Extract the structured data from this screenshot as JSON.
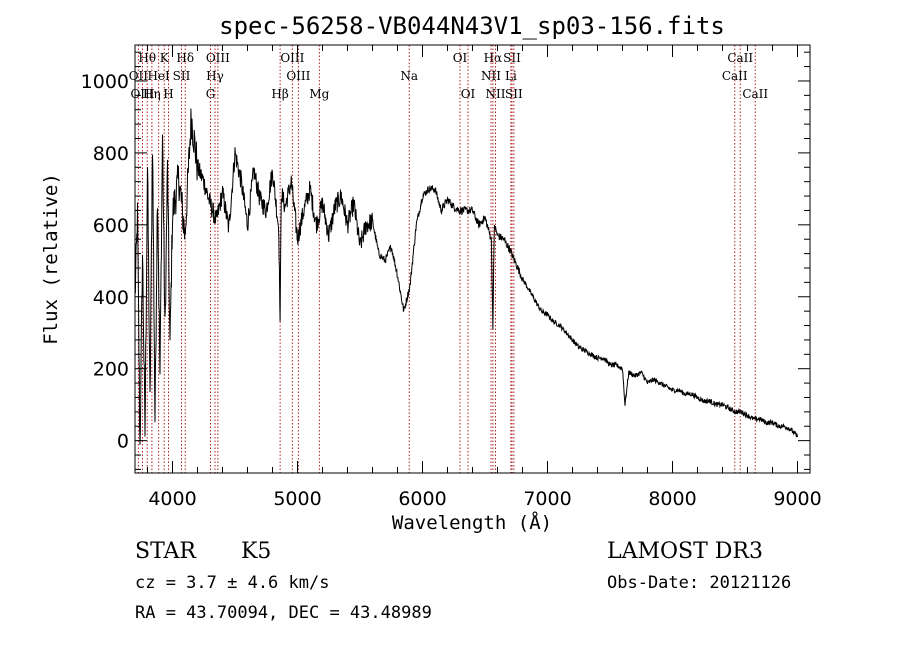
{
  "chart_data": {
    "type": "line",
    "title": "spec-56258-VB044N43V1_sp03-156.fits",
    "xlabel": "Wavelength (Å)",
    "ylabel": "Flux (relative)",
    "xlim": [
      3700,
      9100
    ],
    "ylim": [
      -90,
      1100
    ],
    "xticks": [
      4000,
      5000,
      6000,
      7000,
      8000,
      9000
    ],
    "xtick_labels": [
      "4000",
      "5000",
      "6000",
      "7000",
      "8000",
      "9000"
    ],
    "yticks": [
      0,
      200,
      400,
      600,
      800,
      1000
    ],
    "ytick_labels": [
      "0",
      "200",
      "400",
      "600",
      "800",
      "1000"
    ],
    "grid": false,
    "series": [
      {
        "name": "flux",
        "x": [
          3700,
          3720,
          3740,
          3760,
          3780,
          3800,
          3820,
          3840,
          3860,
          3880,
          3900,
          3920,
          3940,
          3960,
          3980,
          4000,
          4050,
          4100,
          4150,
          4200,
          4250,
          4300,
          4350,
          4400,
          4450,
          4500,
          4550,
          4600,
          4650,
          4700,
          4750,
          4800,
          4850,
          4861,
          4870,
          4900,
          4950,
          5000,
          5050,
          5100,
          5150,
          5200,
          5250,
          5300,
          5350,
          5400,
          5450,
          5500,
          5550,
          5600,
          5650,
          5700,
          5750,
          5800,
          5850,
          5900,
          5950,
          6000,
          6050,
          6100,
          6150,
          6200,
          6250,
          6300,
          6350,
          6400,
          6450,
          6500,
          6550,
          6563,
          6575,
          6600,
          6650,
          6700,
          6750,
          6800,
          6850,
          6900,
          6950,
          7000,
          7050,
          7100,
          7150,
          7200,
          7250,
          7300,
          7350,
          7400,
          7450,
          7500,
          7550,
          7600,
          7620,
          7650,
          7700,
          7750,
          7800,
          7850,
          7900,
          7950,
          8000,
          8050,
          8100,
          8150,
          8200,
          8250,
          8300,
          8350,
          8400,
          8450,
          8500,
          8550,
          8600,
          8650,
          8700,
          8750,
          8800,
          8850,
          8900,
          8950,
          9000
        ],
        "values": [
          400,
          620,
          -20,
          520,
          20,
          760,
          100,
          840,
          60,
          700,
          180,
          850,
          300,
          760,
          260,
          630,
          730,
          570,
          900,
          760,
          720,
          660,
          610,
          690,
          590,
          800,
          720,
          600,
          750,
          670,
          640,
          750,
          590,
          330,
          690,
          650,
          720,
          560,
          640,
          700,
          600,
          660,
          570,
          650,
          680,
          600,
          660,
          540,
          600,
          610,
          520,
          500,
          540,
          460,
          360,
          430,
          600,
          680,
          700,
          700,
          640,
          670,
          650,
          640,
          640,
          640,
          600,
          620,
          560,
          320,
          600,
          570,
          560,
          530,
          490,
          450,
          420,
          390,
          360,
          350,
          330,
          320,
          300,
          280,
          260,
          250,
          240,
          230,
          230,
          210,
          210,
          200,
          100,
          190,
          180,
          190,
          160,
          170,
          160,
          150,
          140,
          140,
          130,
          130,
          120,
          110,
          110,
          100,
          100,
          90,
          80,
          80,
          70,
          60,
          60,
          50,
          50,
          40,
          40,
          30,
          10
        ]
      }
    ],
    "lines": [
      {
        "label": "Hθ",
        "x": 3798,
        "row": 0
      },
      {
        "label": "OII",
        "x": 3727,
        "row": 1
      },
      {
        "label": "OIII",
        "x": 3760,
        "row": 2
      },
      {
        "label": "K",
        "x": 3934,
        "row": 0
      },
      {
        "label": "HeI",
        "x": 3889,
        "row": 1
      },
      {
        "label": "Hη",
        "x": 3835,
        "row": 2
      },
      {
        "label": "Hδ",
        "x": 4102,
        "row": 0
      },
      {
        "label": "SII",
        "x": 4072,
        "row": 1
      },
      {
        "label": "H",
        "x": 3968,
        "row": 2
      },
      {
        "label": "OIII",
        "x": 4363,
        "row": 0
      },
      {
        "label": "Hγ",
        "x": 4340,
        "row": 1
      },
      {
        "label": "G",
        "x": 4304,
        "row": 2
      },
      {
        "label": "OIII",
        "x": 4959,
        "row": 0
      },
      {
        "label": "OIII",
        "x": 5007,
        "row": 1
      },
      {
        "label": "Hβ",
        "x": 4861,
        "row": 2
      },
      {
        "label": "Mg",
        "x": 5175,
        "row": 2
      },
      {
        "label": "Na",
        "x": 5894,
        "row": 1
      },
      {
        "label": "OI",
        "x": 6300,
        "row": 0
      },
      {
        "label": "OI",
        "x": 6364,
        "row": 2
      },
      {
        "label": "Hα",
        "x": 6563,
        "row": 0
      },
      {
        "label": "SII",
        "x": 6716,
        "row": 0
      },
      {
        "label": "NII",
        "x": 6548,
        "row": 1
      },
      {
        "label": "Li",
        "x": 6707,
        "row": 1
      },
      {
        "label": "NII",
        "x": 6584,
        "row": 2
      },
      {
        "label": "SII",
        "x": 6731,
        "row": 2
      },
      {
        "label": "CaII",
        "x": 8542,
        "row": 0
      },
      {
        "label": "CaII",
        "x": 8498,
        "row": 1
      },
      {
        "label": "CaII",
        "x": 8662,
        "row": 2
      }
    ],
    "line_color": "#b22222"
  },
  "info": {
    "class": "STAR",
    "subclass": "K5",
    "cz": "cz = 3.7 ± 4.6 km/s",
    "radec": "RA =  43.70094, DEC =  43.48989",
    "survey": "LAMOST DR3",
    "obsdate": "Obs-Date: 20121126"
  }
}
